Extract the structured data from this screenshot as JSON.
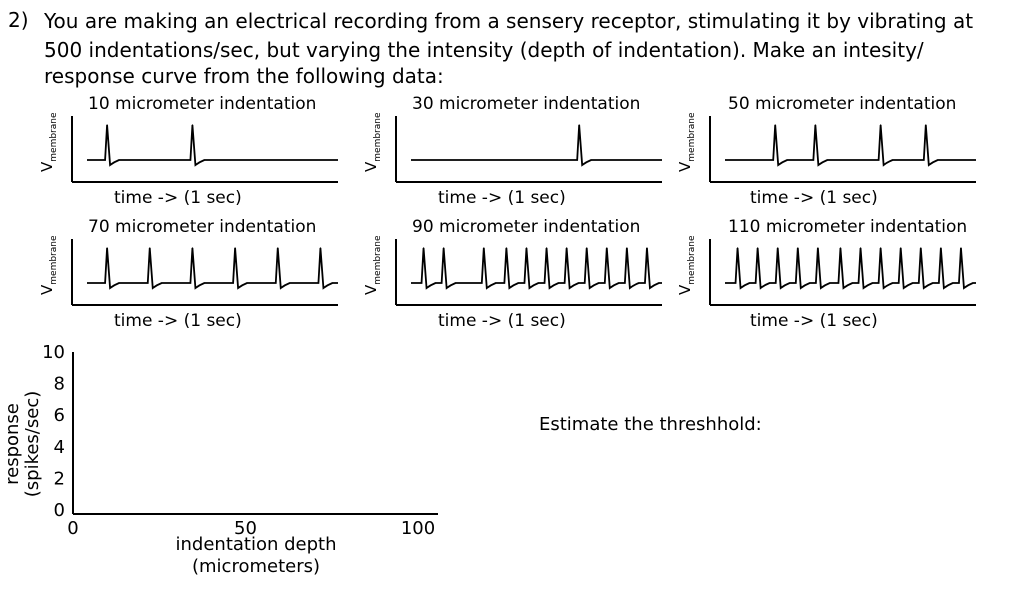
{
  "question": {
    "number": "2)",
    "lines": [
      "You are making an electrical recording from a sensery receptor, stimulating it by vibrating at",
      "500 indentations/sec, but varying the intensity (depth of indentation). Make an intesity/",
      "response curve from the following data:"
    ]
  },
  "traces": [
    {
      "title": "10 micrometer indentation",
      "ylabel": "V",
      "ysub": "membrane",
      "xlabel": "time -> (1 sec)",
      "spikes": [
        0.08,
        0.42
      ]
    },
    {
      "title": "30 micrometer indentation",
      "ylabel": "V",
      "ysub": "membrane",
      "xlabel": "time -> (1 sec)",
      "spikes": [
        0.67
      ]
    },
    {
      "title": "50 micrometer indentation",
      "ylabel": "V",
      "ysub": "membrane",
      "xlabel": "time -> (1 sec)",
      "spikes": [
        0.2,
        0.36,
        0.62,
        0.8
      ]
    },
    {
      "title": "70 micrometer indentation",
      "ylabel": "V",
      "ysub": "membrane",
      "xlabel": "time -> (1 sec)",
      "spikes": [
        0.08,
        0.25,
        0.42,
        0.59,
        0.76,
        0.93
      ]
    },
    {
      "title": "90 micrometer indentation",
      "ylabel": "V",
      "ysub": "membrane",
      "xlabel": "time -> (1 sec)",
      "spikes": [
        0.05,
        0.13,
        0.29,
        0.38,
        0.46,
        0.54,
        0.62,
        0.7,
        0.78,
        0.86,
        0.94
      ]
    },
    {
      "title": "110 micrometer indentation",
      "ylabel": "V",
      "ysub": "membrane",
      "xlabel": "time -> (1 sec)",
      "spikes": [
        0.05,
        0.13,
        0.21,
        0.29,
        0.37,
        0.46,
        0.54,
        0.62,
        0.7,
        0.78,
        0.86,
        0.94
      ]
    }
  ],
  "chart_data": {
    "type": "scatter",
    "title": "",
    "ylabel_lines": [
      "response",
      "(spikes/sec)"
    ],
    "xlabel_lines": [
      "indentation depth",
      "(micrometers)"
    ],
    "xticks": [
      "0",
      "50",
      "100"
    ],
    "yticks": [
      "0",
      "2",
      "4",
      "6",
      "8",
      "10"
    ],
    "xlim": [
      0,
      100
    ],
    "ylim": [
      0,
      10
    ],
    "series": []
  },
  "threshold_prompt": "Estimate the threshhold:"
}
